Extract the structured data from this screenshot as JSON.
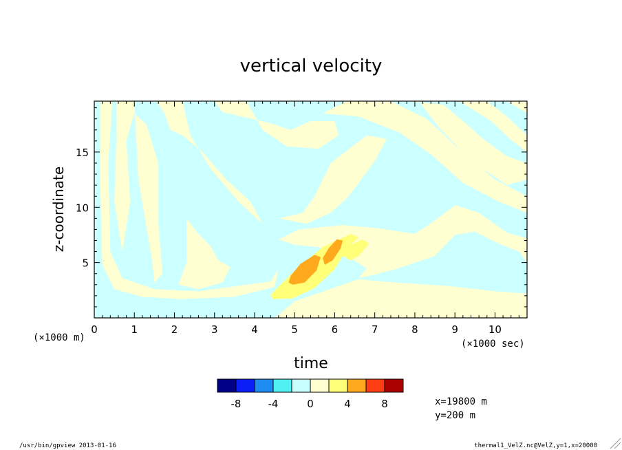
{
  "chart_data": {
    "type": "heatmap",
    "title": "vertical velocity",
    "xlabel": "time",
    "ylabel": "z-coordinate",
    "x_unit": "(×1000 sec)",
    "y_unit": "(×1000 m)",
    "xlim": [
      0,
      10.8
    ],
    "ylim": [
      0,
      19.6
    ],
    "x_ticks": [
      "0",
      "1",
      "2",
      "3",
      "4",
      "5",
      "6",
      "7",
      "8",
      "9",
      "10"
    ],
    "y_ticks": [
      "5",
      "10",
      "15"
    ],
    "colorbar": {
      "levels": [
        -10,
        -8,
        -6,
        -4,
        -2,
        0,
        2,
        4,
        6,
        8,
        10
      ],
      "tick_labels": [
        "-8",
        "-4",
        "0",
        "4",
        "8"
      ],
      "colors": [
        "#00008b",
        "#0a1ef5",
        "#1e8cf0",
        "#50f0f0",
        "#c8ffff",
        "#ffffd2",
        "#ffff78",
        "#ffaa1e",
        "#ff3c14",
        "#aa0000"
      ]
    },
    "background_color": "#ccffff",
    "regions": [
      {
        "level": "0 to 2",
        "color": "#ffffd2",
        "pts": [
          [
            0.55,
            19.6
          ],
          [
            1.0,
            19.6
          ],
          [
            1.1,
            12.5
          ],
          [
            1.45,
            5.0
          ],
          [
            1.5,
            3.2
          ],
          [
            1.7,
            4.0
          ],
          [
            1.6,
            8.5
          ],
          [
            1.6,
            14.0
          ],
          [
            1.3,
            17.5
          ],
          [
            1.0,
            18.5
          ],
          [
            0.8,
            16.0
          ],
          [
            0.9,
            10.5
          ],
          [
            0.7,
            6.0
          ],
          [
            0.5,
            10.5
          ],
          [
            0.55,
            16.0
          ]
        ]
      },
      {
        "level": "0 to 2",
        "color": "#ffffd2",
        "pts": [
          [
            1.55,
            19.6
          ],
          [
            2.2,
            19.6
          ],
          [
            2.4,
            16.5
          ],
          [
            2.9,
            13.5
          ],
          [
            3.6,
            10.5
          ],
          [
            4.2,
            8.5
          ],
          [
            3.9,
            10.5
          ],
          [
            3.3,
            12.5
          ],
          [
            2.7,
            15.0
          ],
          [
            2.2,
            16.5
          ],
          [
            1.9,
            17.0
          ],
          [
            1.75,
            18.5
          ]
        ]
      },
      {
        "level": "0 to 2",
        "color": "#ffffd2",
        "pts": [
          [
            0.15,
            19.6
          ],
          [
            0.45,
            19.6
          ],
          [
            0.35,
            14.0
          ],
          [
            0.4,
            6.0
          ],
          [
            0.7,
            3.6
          ],
          [
            1.5,
            2.6
          ],
          [
            2.6,
            2.4
          ],
          [
            3.8,
            3.0
          ],
          [
            4.4,
            3.3
          ],
          [
            4.6,
            4.5
          ],
          [
            4.5,
            2.8
          ],
          [
            3.5,
            1.9
          ],
          [
            2.2,
            1.7
          ],
          [
            1.2,
            1.9
          ],
          [
            0.5,
            2.6
          ],
          [
            0.2,
            4.8
          ],
          [
            0.15,
            12.0
          ]
        ]
      },
      {
        "level": "0 to 2",
        "color": "#ffffd2",
        "pts": [
          [
            0,
            0
          ],
          [
            4.5,
            0
          ],
          [
            5.0,
            1.5
          ],
          [
            5.8,
            2.5
          ],
          [
            6.6,
            3.5
          ],
          [
            7.5,
            3.2
          ],
          [
            8.8,
            2.9
          ],
          [
            10.0,
            2.4
          ],
          [
            10.8,
            2.2
          ],
          [
            10.8,
            0
          ],
          [
            4.5,
            0
          ],
          [
            0,
            0
          ]
        ]
      },
      {
        "level": "0 to 2",
        "color": "#ffffd2",
        "pts": [
          [
            2.3,
            9.0
          ],
          [
            2.3,
            5.0
          ],
          [
            2.1,
            3.0
          ],
          [
            2.6,
            2.6
          ],
          [
            3.2,
            3.2
          ],
          [
            3.4,
            4.6
          ],
          [
            3.1,
            5.2
          ],
          [
            2.9,
            6.5
          ],
          [
            2.6,
            7.6
          ]
        ]
      },
      {
        "level": "0 to 2",
        "color": "#ffffd2",
        "pts": [
          [
            3.0,
            19.6
          ],
          [
            3.8,
            19.6
          ],
          [
            4.2,
            17.0
          ],
          [
            4.8,
            15.5
          ],
          [
            5.6,
            15.3
          ],
          [
            6.1,
            16.5
          ],
          [
            6.0,
            17.8
          ],
          [
            5.4,
            17.8
          ],
          [
            4.9,
            17.0
          ],
          [
            4.4,
            17.6
          ],
          [
            3.7,
            18.2
          ],
          [
            3.2,
            18.6
          ]
        ]
      },
      {
        "level": "0 to 2",
        "color": "#ffffd2",
        "pts": [
          [
            4.6,
            9.0
          ],
          [
            5.2,
            9.5
          ],
          [
            5.5,
            11.0
          ],
          [
            5.9,
            14.0
          ],
          [
            6.4,
            15.4
          ],
          [
            6.8,
            16.5
          ],
          [
            7.3,
            16.2
          ],
          [
            7.0,
            14.2
          ],
          [
            6.6,
            12.2
          ],
          [
            6.3,
            10.8
          ],
          [
            5.9,
            9.5
          ],
          [
            5.3,
            8.5
          ]
        ]
      },
      {
        "level": "0 to 2",
        "color": "#ffffd2",
        "pts": [
          [
            5.7,
            18.5
          ],
          [
            6.3,
            19.6
          ],
          [
            7.4,
            19.6
          ],
          [
            8.3,
            18.0
          ],
          [
            9.0,
            15.6
          ],
          [
            10.0,
            12.5
          ],
          [
            10.8,
            11.0
          ],
          [
            10.8,
            9.5
          ],
          [
            10.1,
            10.5
          ],
          [
            9.2,
            12.2
          ],
          [
            8.4,
            14.8
          ],
          [
            7.6,
            16.8
          ],
          [
            6.6,
            18.2
          ]
        ]
      },
      {
        "level": "0 to 2",
        "color": "#ffffd2",
        "pts": [
          [
            5.1,
            8.0
          ],
          [
            6.2,
            8.4
          ],
          [
            7.1,
            8.1
          ],
          [
            8.0,
            7.6
          ],
          [
            8.5,
            8.8
          ],
          [
            9.0,
            10.2
          ],
          [
            9.6,
            9.5
          ],
          [
            10.3,
            7.7
          ],
          [
            10.8,
            7.2
          ],
          [
            10.8,
            5.0
          ],
          [
            10.6,
            6.0
          ],
          [
            10.1,
            6.7
          ],
          [
            9.5,
            7.8
          ],
          [
            9.0,
            7.5
          ],
          [
            8.5,
            5.6
          ],
          [
            7.6,
            4.5
          ],
          [
            7.0,
            3.9
          ],
          [
            6.6,
            3.6
          ],
          [
            6.8,
            4.5
          ],
          [
            6.2,
            5.8
          ],
          [
            5.6,
            6.4
          ],
          [
            5.0,
            6.6
          ],
          [
            4.6,
            7.1
          ]
        ]
      },
      {
        "level": "0 to 2",
        "color": "#ffffd2",
        "pts": [
          [
            7.7,
            19.6
          ],
          [
            8.1,
            19.6
          ],
          [
            8.6,
            17.2
          ],
          [
            9.4,
            14.2
          ],
          [
            10.3,
            12.0
          ],
          [
            10.8,
            12.5
          ],
          [
            10.8,
            14.0
          ],
          [
            10.3,
            14.6
          ],
          [
            9.7,
            16.2
          ],
          [
            9.2,
            17.8
          ],
          [
            8.7,
            19.3
          ]
        ]
      },
      {
        "level": "0 to 2",
        "color": "#ffffd2",
        "pts": [
          [
            9.1,
            19.6
          ],
          [
            9.8,
            19.6
          ],
          [
            10.3,
            18.2
          ],
          [
            10.8,
            16.5
          ],
          [
            10.8,
            15.0
          ],
          [
            10.4,
            16.1
          ],
          [
            9.9,
            17.8
          ]
        ]
      },
      {
        "level": "0 to 2",
        "color": "#ffffd2",
        "pts": [
          [
            10.3,
            19.6
          ],
          [
            10.8,
            19.6
          ],
          [
            10.8,
            18.5
          ]
        ]
      },
      {
        "level": "2 to 4",
        "color": "#ffff78",
        "pts": [
          [
            4.45,
            1.7
          ],
          [
            4.95,
            1.75
          ],
          [
            5.5,
            2.7
          ],
          [
            6.0,
            4.4
          ],
          [
            6.3,
            6.2
          ],
          [
            6.6,
            7.3
          ],
          [
            6.4,
            7.6
          ],
          [
            5.7,
            6.4
          ],
          [
            5.1,
            4.6
          ],
          [
            4.7,
            3.2
          ],
          [
            4.4,
            2.1
          ]
        ]
      },
      {
        "level": "2 to 4",
        "color": "#ffff78",
        "pts": [
          [
            6.4,
            5.2
          ],
          [
            6.6,
            5.6
          ],
          [
            6.85,
            6.7
          ],
          [
            6.7,
            7.1
          ],
          [
            6.3,
            6.4
          ],
          [
            6.2,
            5.6
          ]
        ]
      },
      {
        "level": "4 to 6",
        "color": "#ffaa1e",
        "pts": [
          [
            4.95,
            3.0
          ],
          [
            5.25,
            3.2
          ],
          [
            5.55,
            4.3
          ],
          [
            5.65,
            5.5
          ],
          [
            5.5,
            5.7
          ],
          [
            5.15,
            4.9
          ],
          [
            4.9,
            3.8
          ],
          [
            4.85,
            3.2
          ]
        ]
      },
      {
        "level": "4 to 6",
        "color": "#ffaa1e",
        "pts": [
          [
            5.75,
            4.8
          ],
          [
            5.95,
            5.2
          ],
          [
            6.15,
            6.3
          ],
          [
            6.2,
            7.0
          ],
          [
            6.05,
            7.1
          ],
          [
            5.85,
            6.3
          ],
          [
            5.7,
            5.4
          ]
        ]
      }
    ]
  },
  "colorbar_labels": [
    "-8",
    "-4",
    "0",
    "4",
    "8"
  ],
  "info": {
    "x_value": "x=19800 m",
    "y_value": "y=200 m"
  },
  "footer": {
    "left": "/usr/bin/gpview  2013-01-16",
    "right": "thermal1_VelZ.nc@VelZ,y=1,x=20000"
  }
}
